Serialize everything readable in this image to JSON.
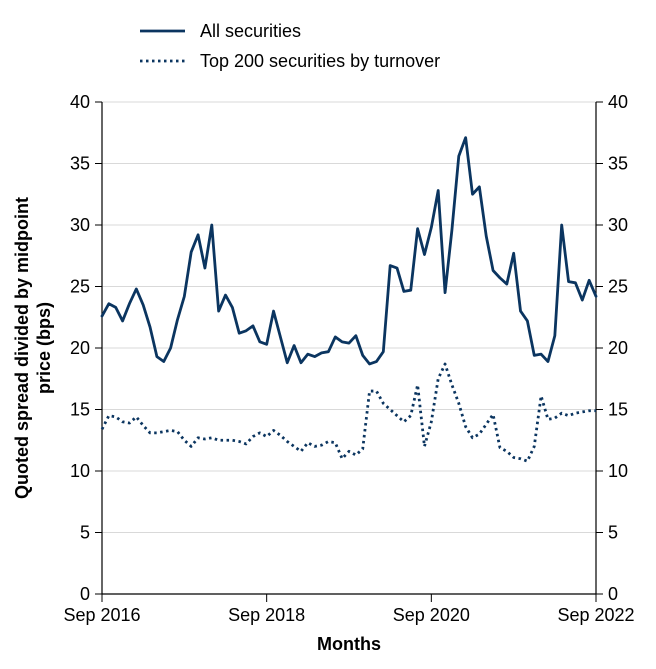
{
  "chart_data": {
    "type": "line",
    "xlabel": "Months",
    "ylabel": "Quoted spread divided by midpoint price (bps)",
    "ylim": [
      0,
      40
    ],
    "yticks": [
      "0",
      "5",
      "10",
      "15",
      "20",
      "25",
      "30",
      "35",
      "40"
    ],
    "xlim": [
      "2016-09",
      "2022-09"
    ],
    "xticks": [
      {
        "label": "Sep 2016",
        "date": "2016-09"
      },
      {
        "label": "Sep 2018",
        "date": "2018-09"
      },
      {
        "label": "Sep 2020",
        "date": "2020-09"
      },
      {
        "label": "Sep 2022",
        "date": "2022-09"
      }
    ],
    "grid": true,
    "legend_position": "top-left",
    "x": [
      "2016-09",
      "2016-10",
      "2016-11",
      "2016-12",
      "2017-01",
      "2017-02",
      "2017-03",
      "2017-04",
      "2017-05",
      "2017-06",
      "2017-07",
      "2017-08",
      "2017-09",
      "2017-10",
      "2017-11",
      "2017-12",
      "2018-01",
      "2018-02",
      "2018-03",
      "2018-04",
      "2018-05",
      "2018-06",
      "2018-07",
      "2018-08",
      "2018-09",
      "2018-10",
      "2018-11",
      "2018-12",
      "2019-01",
      "2019-02",
      "2019-03",
      "2019-04",
      "2019-05",
      "2019-06",
      "2019-07",
      "2019-08",
      "2019-09",
      "2019-10",
      "2019-11",
      "2019-12",
      "2020-01",
      "2020-02",
      "2020-03",
      "2020-04",
      "2020-05",
      "2020-06",
      "2020-07",
      "2020-08",
      "2020-09",
      "2020-10",
      "2020-11",
      "2020-12",
      "2021-01",
      "2021-02",
      "2021-03",
      "2021-04",
      "2021-05",
      "2021-06",
      "2021-07",
      "2021-08",
      "2021-09",
      "2021-10",
      "2021-11",
      "2021-12",
      "2022-01",
      "2022-02",
      "2022-03",
      "2022-04",
      "2022-05",
      "2022-06",
      "2022-07",
      "2022-08",
      "2022-09"
    ],
    "series": [
      {
        "name": "All securities",
        "color": "#0b3560",
        "style": "solid",
        "values": [
          22.6,
          23.6,
          23.3,
          22.2,
          23.6,
          24.8,
          23.5,
          21.7,
          19.3,
          18.9,
          20.0,
          22.3,
          24.2,
          27.8,
          29.2,
          26.5,
          30.0,
          23.0,
          24.3,
          23.3,
          21.2,
          21.4,
          21.8,
          20.5,
          20.3,
          23.0,
          20.9,
          18.8,
          20.2,
          18.8,
          19.5,
          19.3,
          19.6,
          19.7,
          20.9,
          20.5,
          20.4,
          21.0,
          19.4,
          18.7,
          18.9,
          19.7,
          26.7,
          26.5,
          24.6,
          24.7,
          29.7,
          27.6,
          29.8,
          32.8,
          24.5,
          29.6,
          35.6,
          37.1,
          32.5,
          33.1,
          29.1,
          26.3,
          25.7,
          25.2,
          27.7,
          23.0,
          22.2,
          19.4,
          19.5,
          18.9,
          21.0,
          30.0,
          25.4,
          25.3,
          23.9,
          25.5,
          24.2
        ]
      },
      {
        "name": "Top 200 securities by turnover",
        "color": "#0b3560",
        "style": "dotted",
        "values": [
          13.4,
          14.5,
          14.4,
          14.0,
          13.9,
          14.4,
          13.7,
          13.1,
          13.1,
          13.2,
          13.3,
          13.2,
          12.5,
          12.0,
          12.7,
          12.6,
          12.7,
          12.5,
          12.5,
          12.5,
          12.4,
          12.2,
          12.8,
          13.1,
          12.8,
          13.3,
          12.9,
          12.4,
          12.0,
          11.6,
          12.3,
          12.0,
          12.1,
          12.4,
          12.3,
          11.0,
          11.6,
          11.3,
          11.8,
          16.5,
          16.5,
          15.5,
          15.0,
          14.5,
          14.0,
          14.5,
          17.0,
          12.0,
          14.0,
          17.5,
          18.7,
          17.0,
          15.5,
          13.6,
          12.7,
          13.0,
          13.8,
          14.6,
          11.9,
          11.6,
          11.1,
          11.0,
          10.8,
          12.0,
          16.1,
          14.2,
          14.3,
          14.7,
          14.5,
          14.7,
          14.8,
          14.9,
          14.9
        ]
      }
    ]
  }
}
